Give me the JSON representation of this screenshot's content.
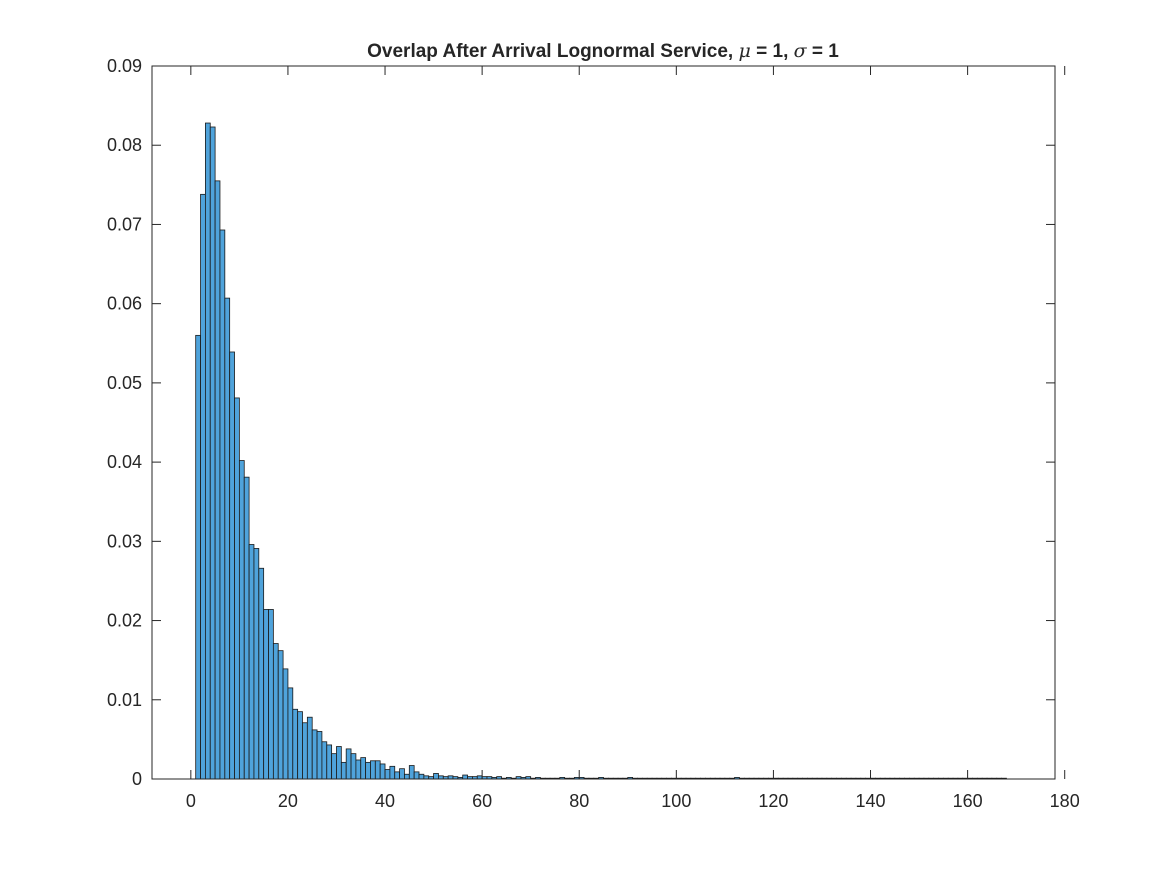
{
  "chart_data": {
    "type": "bar",
    "title_parts": {
      "prefix": "Overlap After Arrival Lognormal Service, ",
      "mu_symbol": "μ",
      "mu_text": " = 1, ",
      "sigma_symbol": "σ",
      "sigma_text": " = 1"
    },
    "xlabel": "",
    "ylabel": "",
    "xlim": [
      -8,
      178
    ],
    "ylim": [
      0,
      0.09
    ],
    "xticks": [
      0,
      20,
      40,
      60,
      80,
      100,
      120,
      140,
      160,
      180
    ],
    "yticks": [
      0,
      0.01,
      0.02,
      0.03,
      0.04,
      0.05,
      0.06,
      0.07,
      0.08,
      0.09
    ],
    "xtick_labels": [
      "0",
      "20",
      "40",
      "60",
      "80",
      "100",
      "120",
      "140",
      "160",
      "180"
    ],
    "ytick_labels": [
      "0",
      "0.01",
      "0.02",
      "0.03",
      "0.04",
      "0.05",
      "0.06",
      "0.07",
      "0.08",
      "0.09"
    ],
    "grid": false,
    "bin_start": 1,
    "bin_width": 1,
    "values": [
      0.056,
      0.0738,
      0.0828,
      0.0823,
      0.0755,
      0.0693,
      0.0607,
      0.0539,
      0.0481,
      0.0402,
      0.0381,
      0.0296,
      0.0291,
      0.0266,
      0.0214,
      0.0214,
      0.0171,
      0.0162,
      0.0139,
      0.0115,
      0.0088,
      0.0085,
      0.0071,
      0.0078,
      0.0062,
      0.006,
      0.0047,
      0.0043,
      0.0032,
      0.0041,
      0.0021,
      0.0038,
      0.0032,
      0.0024,
      0.0027,
      0.0021,
      0.0023,
      0.0023,
      0.0019,
      0.0012,
      0.0016,
      0.0009,
      0.0013,
      0.0006,
      0.0017,
      0.0009,
      0.0006,
      0.0004,
      0.0003,
      0.0007,
      0.0004,
      0.0003,
      0.0004,
      0.0003,
      0.0002,
      0.0005,
      0.0003,
      0.0003,
      0.0004,
      0.0003,
      0.0003,
      0.0002,
      0.0003,
      0.0001,
      0.0002,
      0.0001,
      0.0003,
      0.0002,
      0.0003,
      0.0001,
      0.0002,
      0.0001,
      0.0001,
      0.0001,
      0.0001,
      0.0002,
      0.0001,
      0.0001,
      0.0002,
      0.0002,
      0.0001,
      0.0001,
      0.0001,
      0.0002,
      0.0001,
      0.0001,
      0.0001,
      0.0001,
      0.0001,
      0.0002,
      0.0001,
      0.0001,
      0.0001,
      0.0001,
      0.0001,
      0.0001,
      0.0001,
      0.0001,
      0.0001,
      0.0001,
      0.0001,
      0.0001,
      0.0001,
      0.0001,
      0.0001,
      0.0001,
      0.0001,
      0.0001,
      0.0001,
      0.0001,
      0.0001,
      0.0002,
      0.0001,
      0.0001,
      0.0001,
      0.0001,
      0.0001,
      0.0001,
      0.0001,
      0.0001,
      0.0001,
      0.0001,
      0.0001,
      0.0001,
      0.0001,
      0.0001,
      0.0001,
      0.0001,
      0.0001,
      0.0001,
      0.0001,
      0.0001,
      0.0001,
      0.0001,
      0.0001,
      0.0001,
      0.0001,
      0.0001,
      0.0001,
      0.0001,
      0.0001,
      0.0001,
      0.0001,
      0.0001,
      0.0001,
      0.0001,
      0.0001,
      0.0001,
      0.0001,
      0.0001,
      0.0001,
      0.0001,
      0.0001,
      0.0001,
      0.0001,
      0.0001,
      0.0001,
      0.0001,
      0.0001,
      0.0001,
      0.0001,
      0.0001,
      0.0001,
      0.0001,
      0.0001,
      0.0001,
      0.0001
    ],
    "colors": {
      "bar_fill": "#4fa3db",
      "bar_edge": "#1a1a1a",
      "axis": "#262626",
      "background": "#ffffff"
    }
  }
}
